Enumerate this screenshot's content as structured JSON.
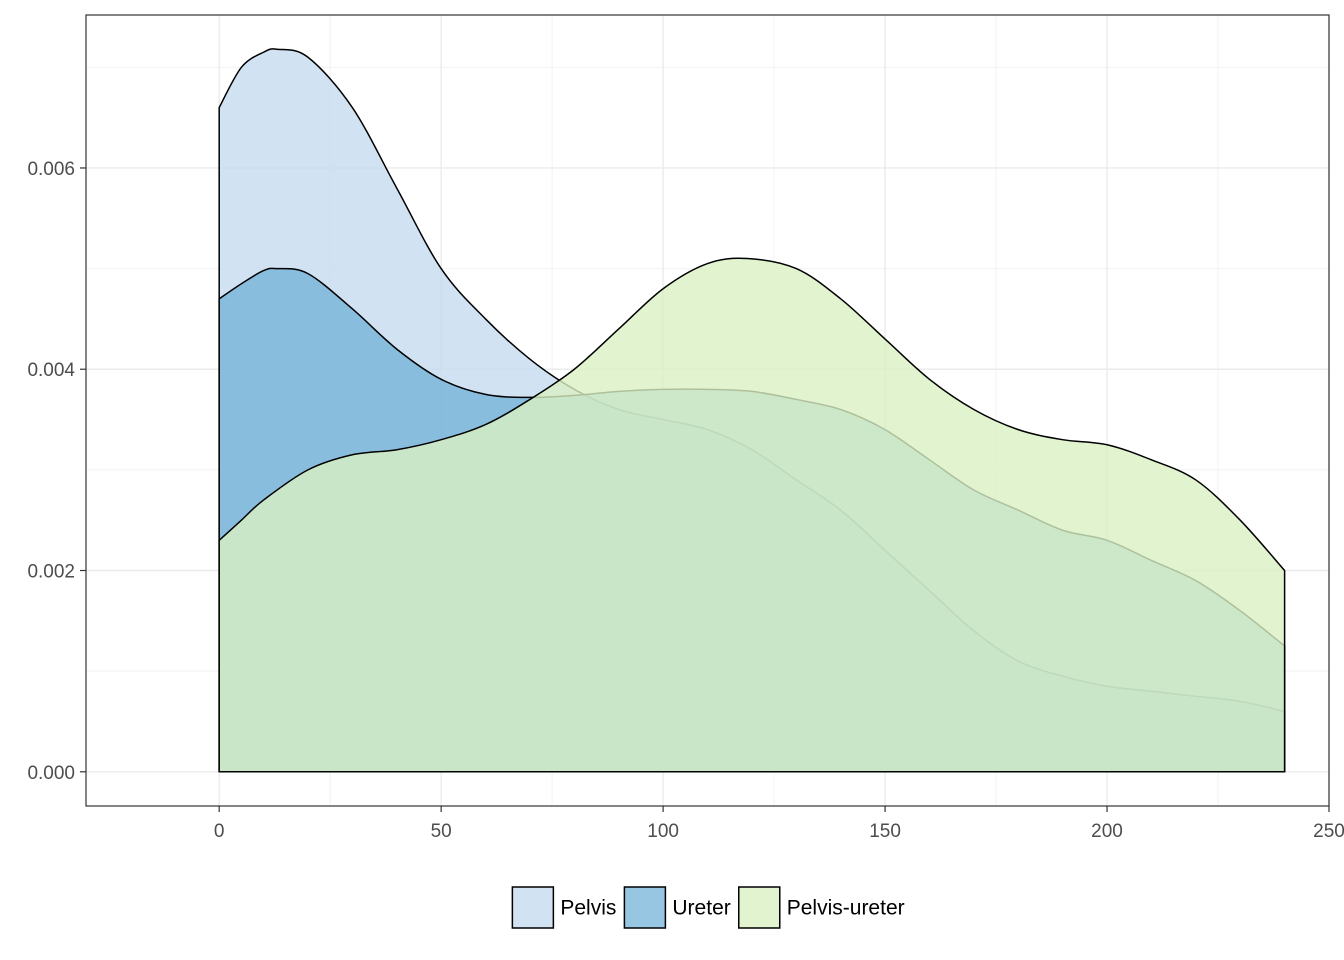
{
  "chart_data": {
    "type": "area",
    "subtype": "density",
    "title": "",
    "xlabel": "",
    "ylabel": "",
    "xlim": [
      -30,
      250
    ],
    "ylim": [
      -0.00034,
      0.00752
    ],
    "x_ticks": [
      0,
      50,
      100,
      150,
      200,
      250
    ],
    "x_tick_labels": [
      "0",
      "50",
      "100",
      "150",
      "200",
      "250"
    ],
    "y_ticks": [
      0.0,
      0.002,
      0.004,
      0.006
    ],
    "y_tick_labels": [
      "0.000",
      "0.002",
      "0.004",
      "0.006"
    ],
    "grid": true,
    "legend_position": "bottom",
    "series": [
      {
        "name": "Pelvis",
        "color": "#c6dbef",
        "opacity": 0.8,
        "x": [
          0,
          5,
          10,
          13,
          20,
          30,
          40,
          50,
          60,
          70,
          80,
          90,
          100,
          110,
          120,
          130,
          140,
          150,
          160,
          170,
          180,
          190,
          200,
          210,
          220,
          230,
          240
        ],
        "y": [
          0.0066,
          0.007,
          0.00715,
          0.00718,
          0.0071,
          0.0066,
          0.0058,
          0.005,
          0.0045,
          0.0041,
          0.0038,
          0.0036,
          0.0035,
          0.0034,
          0.0032,
          0.0029,
          0.0026,
          0.0022,
          0.0018,
          0.0014,
          0.0011,
          0.00095,
          0.00085,
          0.0008,
          0.00075,
          0.0007,
          0.0006
        ]
      },
      {
        "name": "Ureter",
        "color": "#6baed6",
        "opacity": 0.7,
        "x": [
          0,
          5,
          10,
          13,
          20,
          30,
          40,
          50,
          60,
          70,
          80,
          90,
          100,
          110,
          120,
          130,
          140,
          150,
          160,
          170,
          180,
          190,
          200,
          210,
          220,
          230,
          240
        ],
        "y": [
          0.0047,
          0.00485,
          0.00498,
          0.005,
          0.00495,
          0.0046,
          0.0042,
          0.0039,
          0.00375,
          0.00372,
          0.00374,
          0.00378,
          0.0038,
          0.0038,
          0.00378,
          0.0037,
          0.0036,
          0.0034,
          0.0031,
          0.0028,
          0.0026,
          0.0024,
          0.0023,
          0.0021,
          0.0019,
          0.0016,
          0.00125
        ]
      },
      {
        "name": "Pelvis-ureter",
        "color": "#d9f0c3",
        "opacity": 0.8,
        "x": [
          0,
          5,
          10,
          20,
          30,
          40,
          50,
          60,
          70,
          80,
          90,
          100,
          110,
          119,
          130,
          140,
          150,
          160,
          170,
          180,
          190,
          200,
          210,
          220,
          230,
          240
        ],
        "y": [
          0.0023,
          0.0025,
          0.0027,
          0.003,
          0.00315,
          0.0032,
          0.0033,
          0.00345,
          0.0037,
          0.004,
          0.0044,
          0.0048,
          0.00505,
          0.0051,
          0.005,
          0.0047,
          0.0043,
          0.0039,
          0.0036,
          0.0034,
          0.0033,
          0.00325,
          0.0031,
          0.0029,
          0.0025,
          0.002
        ]
      }
    ]
  }
}
